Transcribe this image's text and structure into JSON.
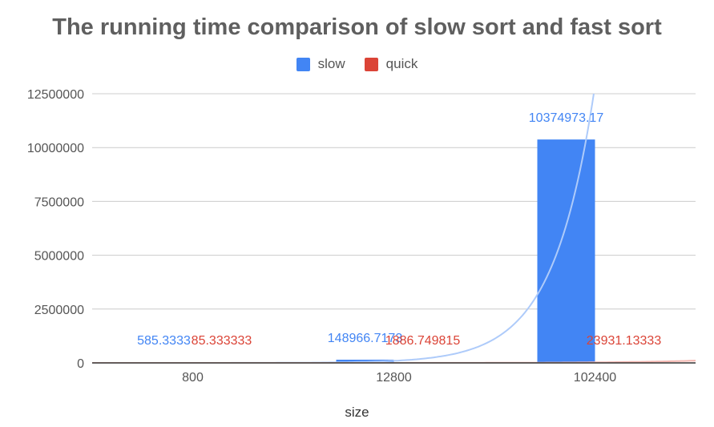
{
  "chart_data": {
    "type": "bar",
    "title": "The running time comparison of slow sort and fast sort",
    "xlabel": "size",
    "ylabel": "",
    "categories": [
      "800",
      "12800",
      "102400"
    ],
    "ylim": [
      0,
      12500000
    ],
    "yticks": [
      0,
      2500000,
      5000000,
      7500000,
      10000000,
      12500000
    ],
    "ytick_labels": [
      "0",
      "2500000",
      "5000000",
      "7500000",
      "10000000",
      "12500000"
    ],
    "grid": true,
    "legend_position": "top",
    "series": [
      {
        "name": "slow",
        "color": "#4285f4",
        "values": [
          585.3333333,
          148966.7173,
          10374973.17
        ],
        "labels": [
          "585.3333",
          "148966.7173",
          "10374973.17"
        ]
      },
      {
        "name": "quick",
        "color": "#db4437",
        "values": [
          85.333333,
          1886.749815,
          23931.13333
        ],
        "labels": [
          "85.333333",
          "1886.749815",
          "23931.13333"
        ]
      }
    ],
    "trendlines": [
      {
        "series": "slow",
        "kind": "exponential",
        "color": "#aecbfa"
      },
      {
        "series": "quick",
        "kind": "exponential",
        "color": "#f4b6b0"
      }
    ]
  }
}
